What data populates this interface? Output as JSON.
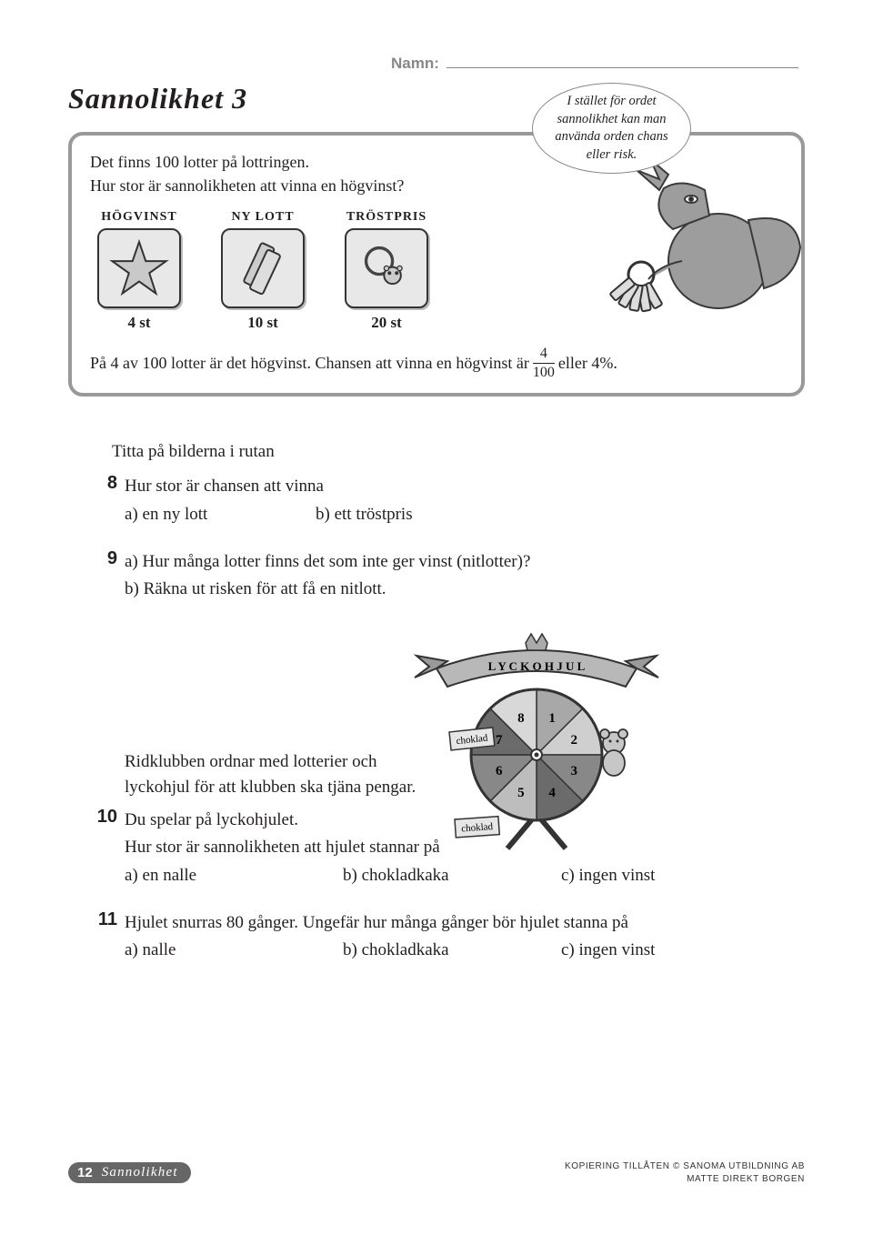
{
  "header": {
    "name_label": "Namn:"
  },
  "title": "Sannolikhet 3",
  "bubble": "I stället för ordet sannolikhet kan man använda orden chans eller risk.",
  "infobox": {
    "line1": "Det finns 100 lotter på lottringen.",
    "line2": "Hur stor är sannolikheten att vinna en högvinst?",
    "prizes": [
      {
        "label": "HÖGVINST",
        "count": "4 st"
      },
      {
        "label": "NY LOTT",
        "count": "10 st"
      },
      {
        "label": "TRÖSTPRIS",
        "count": "20 st"
      }
    ],
    "explain_pre": "På 4 av 100 lotter är det högvinst. Chansen att vinna en högvinst är ",
    "frac_num": "4",
    "frac_den": "100",
    "explain_post": " eller 4%."
  },
  "questions": {
    "lead": "Titta på bilderna i rutan",
    "q8": {
      "num": "8",
      "stem": "Hur stor är chansen att vinna",
      "a": "a)  en ny lott",
      "b": "b)  ett tröstpris"
    },
    "q9": {
      "num": "9",
      "a": "a)  Hur många lotter finns det som inte ger vinst (nitlotter)?",
      "b": "b)  Räkna ut risken för att få en nitlott."
    },
    "intro10": {
      "l1": "Ridklubben ordnar med lotterier och",
      "l2": "lyckohjul för att klubben ska tjäna pengar."
    },
    "q10": {
      "num": "10",
      "l1": "Du spelar på lyckohjulet.",
      "l2": "Hur stor är sannolikheten att hjulet stannar på",
      "a": "a)  en nalle",
      "b": "b)  chokladkaka",
      "c": "c)  ingen vinst"
    },
    "q11": {
      "num": "11",
      "stem": "Hjulet snurras 80 gånger. Ungefär hur många gånger bör hjulet stanna på",
      "a": "a)  nalle",
      "b": "b)  chokladkaka",
      "c": "c)  ingen vinst"
    }
  },
  "wheel": {
    "banner": "L Y C K O H J U L",
    "numbers": [
      "1",
      "2",
      "3",
      "4",
      "5",
      "6",
      "7",
      "8"
    ],
    "tag1": "choklad",
    "tag2": "choklad",
    "slice_colors": [
      "#a8a8a8",
      "#cfcfcf",
      "#888888",
      "#6b6b6b",
      "#bdbdbd",
      "#888888",
      "#6b6b6b",
      "#d8d8d8"
    ]
  },
  "footer": {
    "page_num": "12",
    "section": "Sannolikhet",
    "copy_l1": "KOPIERING TILLÅTEN  © SANOMA UTBILDNING AB",
    "copy_l2": "MATTE DIREKT BORGEN"
  },
  "style": {
    "border_color": "#999999",
    "text_color": "#231f20",
    "tab_bg": "#666666",
    "icon_bg": "#e8e8e8"
  }
}
